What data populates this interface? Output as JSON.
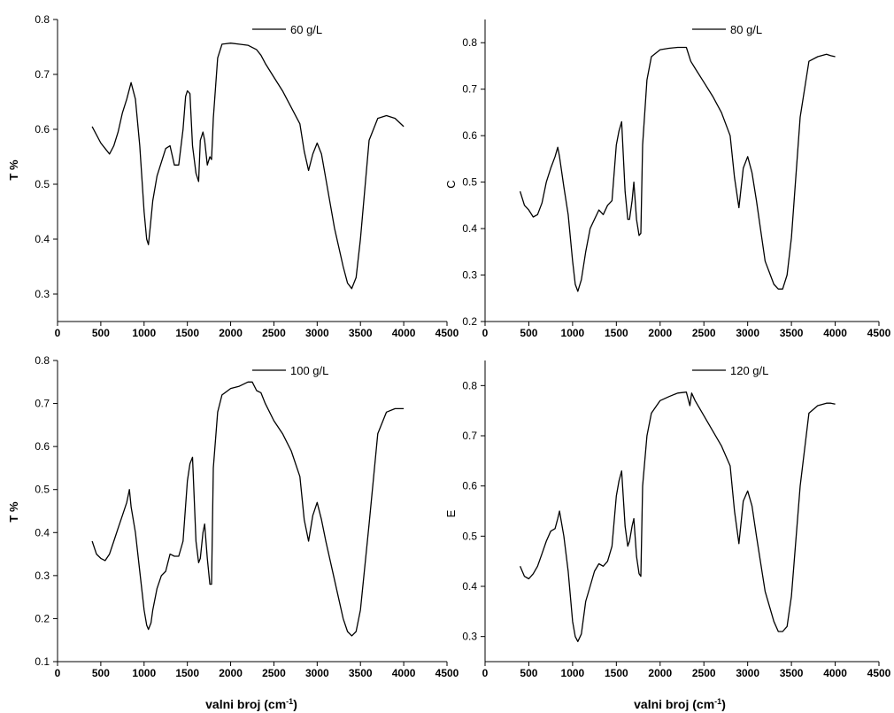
{
  "chart_data": [
    {
      "type": "line",
      "ylabel": "T %",
      "xlabel": "",
      "xlim": [
        0,
        4500
      ],
      "ylim": [
        0.25,
        0.8
      ],
      "xticks": [
        "0",
        "500",
        "1000",
        "1500",
        "2000",
        "2500",
        "3000",
        "3500",
        "4000",
        "4500"
      ],
      "yticks": [
        "0.3",
        "0.4",
        "0.5",
        "0.6",
        "0.7",
        "0.8"
      ],
      "series": [
        {
          "name": "60 g/L",
          "x": [
            400,
            500,
            550,
            600,
            650,
            700,
            750,
            800,
            850,
            900,
            950,
            1000,
            1030,
            1050,
            1070,
            1100,
            1150,
            1200,
            1250,
            1300,
            1350,
            1400,
            1450,
            1480,
            1500,
            1530,
            1560,
            1600,
            1630,
            1650,
            1680,
            1700,
            1730,
            1760,
            1780,
            1800,
            1850,
            1900,
            2000,
            2100,
            2200,
            2300,
            2350,
            2400,
            2500,
            2600,
            2700,
            2800,
            2850,
            2900,
            2950,
            3000,
            3050,
            3100,
            3200,
            3300,
            3350,
            3400,
            3450,
            3500,
            3600,
            3700,
            3800,
            3900,
            4000
          ],
          "y": [
            0.605,
            0.575,
            0.565,
            0.555,
            0.57,
            0.595,
            0.63,
            0.655,
            0.685,
            0.655,
            0.57,
            0.45,
            0.4,
            0.39,
            0.42,
            0.47,
            0.515,
            0.54,
            0.565,
            0.57,
            0.535,
            0.535,
            0.6,
            0.66,
            0.67,
            0.665,
            0.57,
            0.52,
            0.505,
            0.58,
            0.595,
            0.58,
            0.535,
            0.55,
            0.545,
            0.62,
            0.73,
            0.755,
            0.757,
            0.755,
            0.753,
            0.745,
            0.735,
            0.72,
            0.695,
            0.67,
            0.64,
            0.61,
            0.56,
            0.525,
            0.555,
            0.575,
            0.555,
            0.51,
            0.42,
            0.35,
            0.32,
            0.31,
            0.33,
            0.4,
            0.58,
            0.62,
            0.625,
            0.62,
            0.605
          ]
        }
      ]
    },
    {
      "type": "line",
      "ylabel": "C",
      "xlabel": "",
      "xlim": [
        0,
        4500
      ],
      "ylim": [
        0.2,
        0.85
      ],
      "xticks": [
        "0",
        "500",
        "1000",
        "1500",
        "2000",
        "2500",
        "3000",
        "3500",
        "4000",
        "4500"
      ],
      "yticks": [
        "0.2",
        "0.3",
        "0.4",
        "0.5",
        "0.6",
        "0.7",
        "0.8"
      ],
      "series": [
        {
          "name": "80 g/L",
          "x": [
            400,
            450,
            500,
            550,
            600,
            650,
            700,
            750,
            800,
            830,
            850,
            900,
            950,
            1000,
            1030,
            1060,
            1100,
            1150,
            1200,
            1250,
            1300,
            1350,
            1400,
            1450,
            1500,
            1530,
            1560,
            1600,
            1630,
            1650,
            1680,
            1700,
            1730,
            1760,
            1780,
            1800,
            1850,
            1900,
            2000,
            2100,
            2200,
            2300,
            2350,
            2400,
            2500,
            2600,
            2700,
            2800,
            2850,
            2900,
            2950,
            3000,
            3050,
            3100,
            3200,
            3300,
            3350,
            3400,
            3450,
            3500,
            3600,
            3700,
            3800,
            3900,
            3950,
            4000
          ],
          "y": [
            0.48,
            0.45,
            0.44,
            0.425,
            0.43,
            0.455,
            0.5,
            0.53,
            0.555,
            0.575,
            0.555,
            0.49,
            0.43,
            0.33,
            0.28,
            0.265,
            0.29,
            0.35,
            0.4,
            0.42,
            0.44,
            0.43,
            0.45,
            0.46,
            0.58,
            0.61,
            0.63,
            0.48,
            0.42,
            0.42,
            0.46,
            0.5,
            0.42,
            0.385,
            0.39,
            0.58,
            0.72,
            0.77,
            0.785,
            0.788,
            0.79,
            0.79,
            0.76,
            0.745,
            0.715,
            0.685,
            0.65,
            0.6,
            0.51,
            0.445,
            0.53,
            0.555,
            0.52,
            0.46,
            0.33,
            0.28,
            0.27,
            0.27,
            0.3,
            0.38,
            0.64,
            0.76,
            0.77,
            0.775,
            0.772,
            0.77
          ]
        }
      ]
    },
    {
      "type": "line",
      "ylabel": "T %",
      "xlabel": "valni broj (cm-1)",
      "xlim": [
        0,
        4500
      ],
      "ylim": [
        0.1,
        0.8
      ],
      "xticks": [
        "0",
        "500",
        "1000",
        "1500",
        "2000",
        "2500",
        "3000",
        "3500",
        "4000",
        "4500"
      ],
      "yticks": [
        "0.1",
        "0.2",
        "0.3",
        "0.4",
        "0.5",
        "0.6",
        "0.7",
        "0.8"
      ],
      "series": [
        {
          "name": "100 g/L",
          "x": [
            400,
            450,
            500,
            550,
            600,
            650,
            700,
            750,
            800,
            830,
            850,
            900,
            950,
            1000,
            1030,
            1050,
            1080,
            1100,
            1150,
            1200,
            1250,
            1300,
            1350,
            1400,
            1450,
            1500,
            1530,
            1560,
            1600,
            1630,
            1650,
            1680,
            1700,
            1730,
            1760,
            1780,
            1800,
            1850,
            1900,
            2000,
            2100,
            2200,
            2250,
            2300,
            2350,
            2400,
            2500,
            2600,
            2700,
            2800,
            2850,
            2900,
            2950,
            3000,
            3050,
            3100,
            3200,
            3300,
            3350,
            3400,
            3450,
            3500,
            3600,
            3700,
            3800,
            3900,
            4000
          ],
          "y": [
            0.38,
            0.35,
            0.34,
            0.335,
            0.35,
            0.38,
            0.41,
            0.44,
            0.47,
            0.5,
            0.46,
            0.4,
            0.31,
            0.22,
            0.185,
            0.175,
            0.19,
            0.22,
            0.27,
            0.3,
            0.31,
            0.35,
            0.345,
            0.345,
            0.38,
            0.52,
            0.56,
            0.575,
            0.38,
            0.33,
            0.34,
            0.4,
            0.42,
            0.34,
            0.28,
            0.28,
            0.55,
            0.68,
            0.72,
            0.735,
            0.74,
            0.75,
            0.75,
            0.73,
            0.725,
            0.7,
            0.66,
            0.63,
            0.59,
            0.53,
            0.43,
            0.38,
            0.44,
            0.47,
            0.43,
            0.38,
            0.29,
            0.2,
            0.17,
            0.16,
            0.17,
            0.22,
            0.42,
            0.63,
            0.68,
            0.688,
            0.688
          ]
        }
      ]
    },
    {
      "type": "line",
      "ylabel": "E",
      "xlabel": "valni broj (cm-1)",
      "xlim": [
        0,
        4500
      ],
      "ylim": [
        0.25,
        0.85
      ],
      "xticks": [
        "0",
        "500",
        "1000",
        "1500",
        "2000",
        "2500",
        "3000",
        "3500",
        "4000",
        "4500"
      ],
      "yticks": [
        "0.3",
        "0.4",
        "0.5",
        "0.6",
        "0.7",
        "0.8"
      ],
      "series": [
        {
          "name": "120 g/L",
          "x": [
            400,
            450,
            500,
            550,
            600,
            650,
            700,
            750,
            800,
            830,
            850,
            900,
            950,
            1000,
            1030,
            1060,
            1100,
            1150,
            1200,
            1250,
            1300,
            1350,
            1400,
            1450,
            1500,
            1530,
            1560,
            1600,
            1630,
            1650,
            1680,
            1700,
            1730,
            1760,
            1780,
            1800,
            1850,
            1900,
            2000,
            2100,
            2200,
            2300,
            2340,
            2360,
            2400,
            2500,
            2600,
            2700,
            2800,
            2850,
            2900,
            2950,
            3000,
            3050,
            3100,
            3200,
            3300,
            3350,
            3400,
            3450,
            3500,
            3600,
            3700,
            3800,
            3900,
            3950,
            4000
          ],
          "y": [
            0.44,
            0.42,
            0.415,
            0.425,
            0.44,
            0.465,
            0.49,
            0.51,
            0.515,
            0.535,
            0.55,
            0.5,
            0.43,
            0.33,
            0.3,
            0.29,
            0.305,
            0.37,
            0.4,
            0.43,
            0.445,
            0.44,
            0.45,
            0.48,
            0.58,
            0.61,
            0.63,
            0.52,
            0.48,
            0.49,
            0.52,
            0.535,
            0.46,
            0.425,
            0.42,
            0.6,
            0.7,
            0.745,
            0.77,
            0.778,
            0.785,
            0.787,
            0.76,
            0.785,
            0.77,
            0.74,
            0.71,
            0.68,
            0.64,
            0.55,
            0.485,
            0.57,
            0.59,
            0.56,
            0.5,
            0.39,
            0.33,
            0.31,
            0.31,
            0.32,
            0.38,
            0.6,
            0.745,
            0.76,
            0.765,
            0.765,
            0.763
          ]
        }
      ]
    }
  ]
}
